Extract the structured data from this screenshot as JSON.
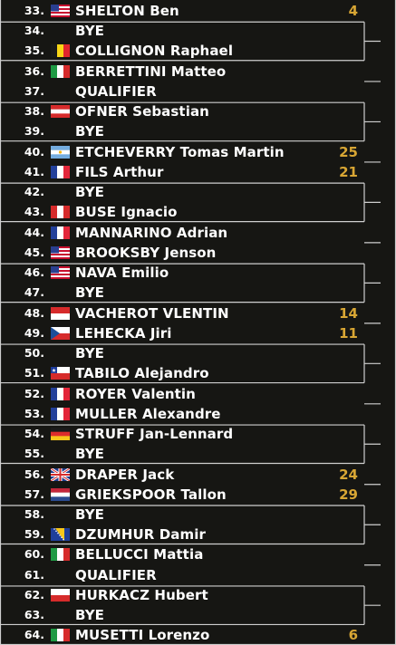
{
  "colors": {
    "background": "#161613",
    "text": "#ffffff",
    "seed": "#d8a634",
    "bracket_line": "#cfcfcf"
  },
  "entries": [
    {
      "num": "33.",
      "flag": "usa-flag",
      "name": "SHELTON Ben",
      "seed": "4"
    },
    {
      "num": "34.",
      "flag": "",
      "name": "BYE",
      "seed": ""
    },
    {
      "num": "35.",
      "flag": "belgium-flag",
      "name": "COLLIGNON Raphael",
      "seed": ""
    },
    {
      "num": "36.",
      "flag": "italy-flag",
      "name": "BERRETTINI Matteo",
      "seed": ""
    },
    {
      "num": "37.",
      "flag": "",
      "name": "QUALIFIER",
      "seed": ""
    },
    {
      "num": "38.",
      "flag": "austria-flag",
      "name": "OFNER Sebastian",
      "seed": ""
    },
    {
      "num": "39.",
      "flag": "",
      "name": "BYE",
      "seed": ""
    },
    {
      "num": "40.",
      "flag": "argentina-flag",
      "name": "ETCHEVERRY Tomas Martin",
      "seed": "25"
    },
    {
      "num": "41.",
      "flag": "france-flag",
      "name": "FILS Arthur",
      "seed": "21"
    },
    {
      "num": "42.",
      "flag": "",
      "name": "BYE",
      "seed": ""
    },
    {
      "num": "43.",
      "flag": "peru-flag",
      "name": "BUSE Ignacio",
      "seed": ""
    },
    {
      "num": "44.",
      "flag": "france-flag",
      "name": "MANNARINO Adrian",
      "seed": ""
    },
    {
      "num": "45.",
      "flag": "usa-flag",
      "name": "BROOKSBY Jenson",
      "seed": ""
    },
    {
      "num": "46.",
      "flag": "usa-flag",
      "name": "NAVA Emilio",
      "seed": ""
    },
    {
      "num": "47.",
      "flag": "",
      "name": "BYE",
      "seed": ""
    },
    {
      "num": "48.",
      "flag": "monaco-flag",
      "name": "VACHEROT VLENTIN",
      "seed": "14"
    },
    {
      "num": "49.",
      "flag": "czech-flag",
      "name": "LEHECKA Jiri",
      "seed": "11"
    },
    {
      "num": "50.",
      "flag": "",
      "name": "BYE",
      "seed": ""
    },
    {
      "num": "51.",
      "flag": "chile-flag",
      "name": "TABILO Alejandro",
      "seed": ""
    },
    {
      "num": "52.",
      "flag": "france-flag",
      "name": "ROYER Valentin",
      "seed": ""
    },
    {
      "num": "53.",
      "flag": "france-flag",
      "name": "MULLER Alexandre",
      "seed": ""
    },
    {
      "num": "54.",
      "flag": "germany-flag",
      "name": "STRUFF Jan-Lennard",
      "seed": ""
    },
    {
      "num": "55.",
      "flag": "",
      "name": "BYE",
      "seed": ""
    },
    {
      "num": "56.",
      "flag": "uk-flag",
      "name": "DRAPER Jack",
      "seed": "24"
    },
    {
      "num": "57.",
      "flag": "netherlands-flag",
      "name": "GRIEKSPOOR Tallon",
      "seed": "29"
    },
    {
      "num": "58.",
      "flag": "",
      "name": "BYE",
      "seed": ""
    },
    {
      "num": "59.",
      "flag": "bosnia-flag",
      "name": "DZUMHUR Damir",
      "seed": ""
    },
    {
      "num": "60.",
      "flag": "italy-flag",
      "name": "BELLUCCI Mattia",
      "seed": ""
    },
    {
      "num": "61.",
      "flag": "",
      "name": "QUALIFIER",
      "seed": ""
    },
    {
      "num": "62.",
      "flag": "poland-flag",
      "name": "HURKACZ Hubert",
      "seed": ""
    },
    {
      "num": "63.",
      "flag": "",
      "name": "BYE",
      "seed": ""
    },
    {
      "num": "64.",
      "flag": "italy-flag",
      "name": "MUSETTI Lorenzo",
      "seed": "6"
    }
  ]
}
